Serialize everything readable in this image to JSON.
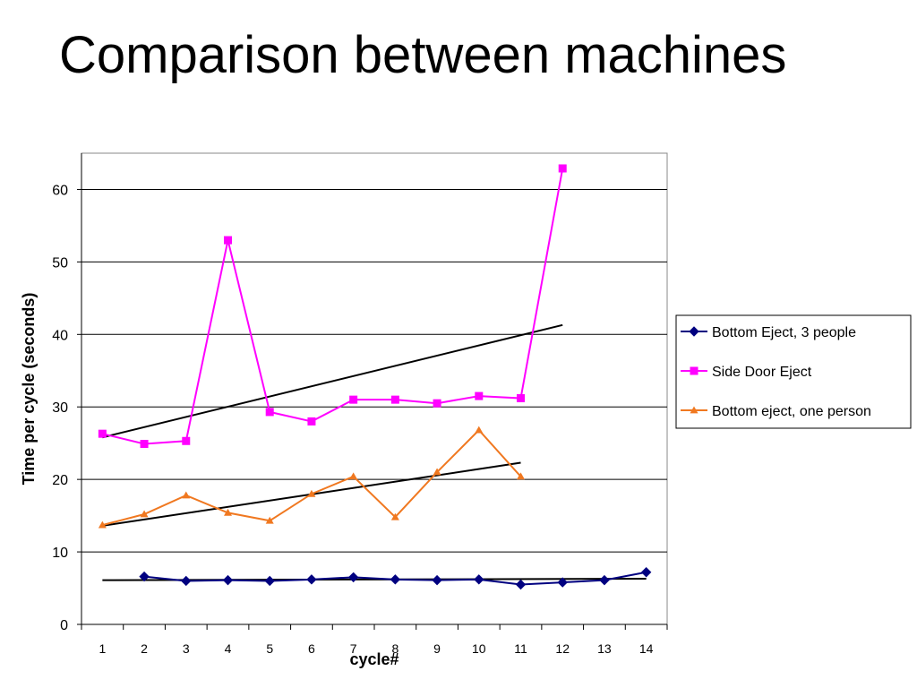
{
  "slide": {
    "title": "Comparison between machines"
  },
  "chart_data": {
    "type": "line",
    "title": "",
    "xlabel": "cycle#",
    "ylabel": "Time per cycle (seconds)",
    "categories": [
      "1",
      "2",
      "3",
      "4",
      "5",
      "6",
      "7",
      "8",
      "9",
      "10",
      "11",
      "12",
      "13",
      "14"
    ],
    "ylim": [
      0,
      65
    ],
    "yticks": [
      0,
      10,
      20,
      30,
      40,
      50,
      60
    ],
    "grid": "horizontal",
    "legend_position": "right",
    "series": [
      {
        "name": "Bottom Eject, 3 people",
        "color": "#000080",
        "marker": "diamond",
        "values": [
          null,
          6.6,
          6.0,
          6.1,
          6.0,
          6.2,
          6.5,
          6.2,
          6.1,
          6.2,
          5.5,
          5.8,
          6.1,
          7.2
        ],
        "trendline": {
          "x": [
            1,
            14
          ],
          "y": [
            6.1,
            6.3
          ]
        }
      },
      {
        "name": "Side Door Eject",
        "color": "#FF00FF",
        "marker": "square",
        "values": [
          26.3,
          24.9,
          25.3,
          53.0,
          29.3,
          28.0,
          31.0,
          31.0,
          30.5,
          31.5,
          31.2,
          62.9,
          null,
          null
        ],
        "trendline": {
          "x": [
            1,
            12
          ],
          "y": [
            25.8,
            41.3
          ]
        }
      },
      {
        "name": "Bottom eject, one person",
        "color": "#F07820",
        "marker": "triangle",
        "values": [
          13.7,
          15.2,
          17.8,
          15.4,
          14.3,
          18.0,
          20.4,
          14.8,
          21.0,
          26.8,
          20.4,
          null,
          null,
          null
        ],
        "trendline": {
          "x": [
            1,
            11
          ],
          "y": [
            13.6,
            22.3
          ]
        }
      }
    ]
  }
}
